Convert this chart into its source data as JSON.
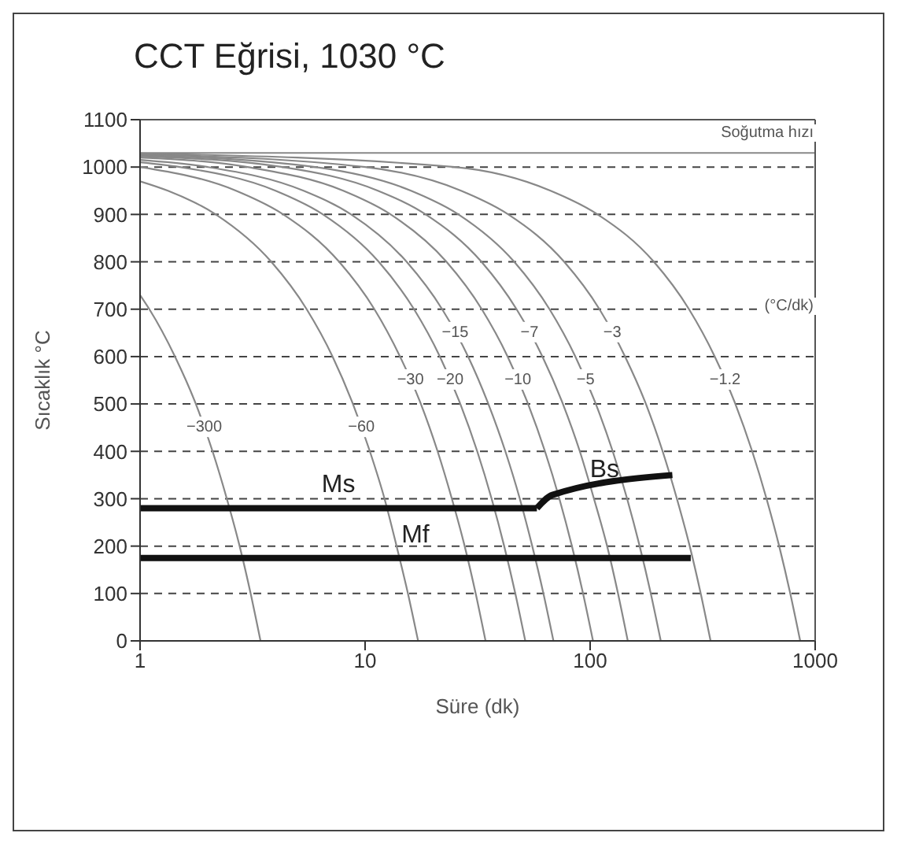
{
  "chart_data": {
    "type": "line",
    "title": "CCT Eğrisi, 1030 °C",
    "xlabel": "Süre (dk)",
    "ylabel": "Sıcaklık °C",
    "log": "x",
    "xlim": [
      1,
      1000
    ],
    "xticks": [
      1,
      10,
      100,
      1000
    ],
    "ylim": [
      0,
      1100
    ],
    "yticks": [
      0,
      100,
      200,
      300,
      400,
      500,
      600,
      700,
      800,
      900,
      1000,
      1100
    ],
    "grid": "y",
    "marker": "none",
    "ref_lines": [
      {
        "axis": "y",
        "value": 1030,
        "color": "#888888",
        "line_style": "solid"
      }
    ],
    "series": [
      {
        "name": "−300",
        "color": "#888888",
        "x": [
          1,
          1.1,
          1.43,
          1.77,
          2.1,
          2.43,
          2.77,
          3.1,
          3.43
        ],
        "values": [
          730,
          700,
          600,
          500,
          400,
          300,
          200,
          100,
          0
        ]
      },
      {
        "name": "−60",
        "color": "#888888",
        "x": [
          1,
          1.33,
          2.17,
          3.83,
          5.5,
          7.17,
          8.83,
          10.5,
          12.2,
          13.8,
          15.5,
          17.2
        ],
        "values": [
          970,
          950,
          900,
          800,
          700,
          600,
          500,
          400,
          300,
          200,
          100,
          0
        ]
      },
      {
        "name": "−30",
        "color": "#888888",
        "x": [
          1,
          2.67,
          4.33,
          7.67,
          11,
          14.3,
          17.7,
          21,
          24.3,
          27.7,
          31,
          34.3
        ],
        "values": [
          1000,
          950,
          900,
          800,
          700,
          600,
          500,
          400,
          300,
          200,
          100,
          0
        ]
      },
      {
        "name": "−20",
        "color": "#888888",
        "x": [
          1,
          1.5,
          4,
          6.5,
          11.5,
          16.5,
          21.5,
          26.5,
          31.5,
          36.5,
          41.5,
          46.5,
          51.5
        ],
        "values": [
          1010,
          1000,
          950,
          900,
          800,
          700,
          600,
          500,
          400,
          300,
          200,
          100,
          0
        ]
      },
      {
        "name": "−15",
        "color": "#888888",
        "x": [
          1,
          2,
          5.33,
          8.67,
          15.3,
          22,
          28.7,
          35.3,
          42,
          48.7,
          55.3,
          62,
          68.7
        ],
        "values": [
          1015,
          1000,
          950,
          900,
          800,
          700,
          600,
          500,
          400,
          300,
          200,
          100,
          0
        ]
      },
      {
        "name": "−10",
        "color": "#888888",
        "x": [
          1,
          3,
          8,
          13,
          23,
          33,
          43,
          53,
          63,
          73,
          83,
          93,
          103
        ],
        "values": [
          1020,
          1000,
          950,
          900,
          800,
          700,
          600,
          500,
          400,
          300,
          200,
          100,
          0
        ]
      },
      {
        "name": "−7",
        "color": "#888888",
        "x": [
          1,
          4.29,
          11.4,
          18.6,
          32.9,
          47.1,
          61.4,
          75.7,
          90,
          104,
          119,
          133,
          147
        ],
        "values": [
          1023,
          1000,
          950,
          900,
          800,
          700,
          600,
          500,
          400,
          300,
          200,
          100,
          0
        ]
      },
      {
        "name": "−5",
        "color": "#888888",
        "x": [
          1,
          6,
          16,
          26,
          46,
          66,
          86,
          106,
          126,
          146,
          166,
          186,
          206
        ],
        "values": [
          1025,
          1000,
          950,
          900,
          800,
          700,
          600,
          500,
          400,
          300,
          200,
          100,
          0
        ]
      },
      {
        "name": "−3",
        "color": "#888888",
        "x": [
          1,
          10,
          26.7,
          43.3,
          76.7,
          110,
          143,
          177,
          210,
          243,
          277,
          310,
          343
        ],
        "values": [
          1027,
          1000,
          950,
          900,
          800,
          700,
          600,
          500,
          400,
          300,
          200,
          100,
          0
        ]
      },
      {
        "name": "−1.2",
        "color": "#888888",
        "x": [
          1,
          25,
          66.7,
          108,
          192,
          275,
          358,
          442,
          525,
          608,
          692,
          775,
          858
        ],
        "values": [
          1029,
          1000,
          950,
          900,
          800,
          700,
          600,
          500,
          400,
          300,
          200,
          100,
          0
        ]
      },
      {
        "name": "Ms",
        "type": "line",
        "color": "#111111",
        "x": [
          1,
          58
        ],
        "values": [
          280,
          280
        ]
      },
      {
        "name": "Bs",
        "color": "#111111",
        "x": [
          58,
          68,
          232
        ],
        "values": [
          280,
          308,
          350
        ]
      },
      {
        "name": "Mf",
        "color": "#111111",
        "x": [
          1,
          280
        ],
        "values": [
          175,
          175
        ]
      }
    ],
    "annotations": [
      "(°C/dk)",
      "Soğutma hızı"
    ]
  }
}
